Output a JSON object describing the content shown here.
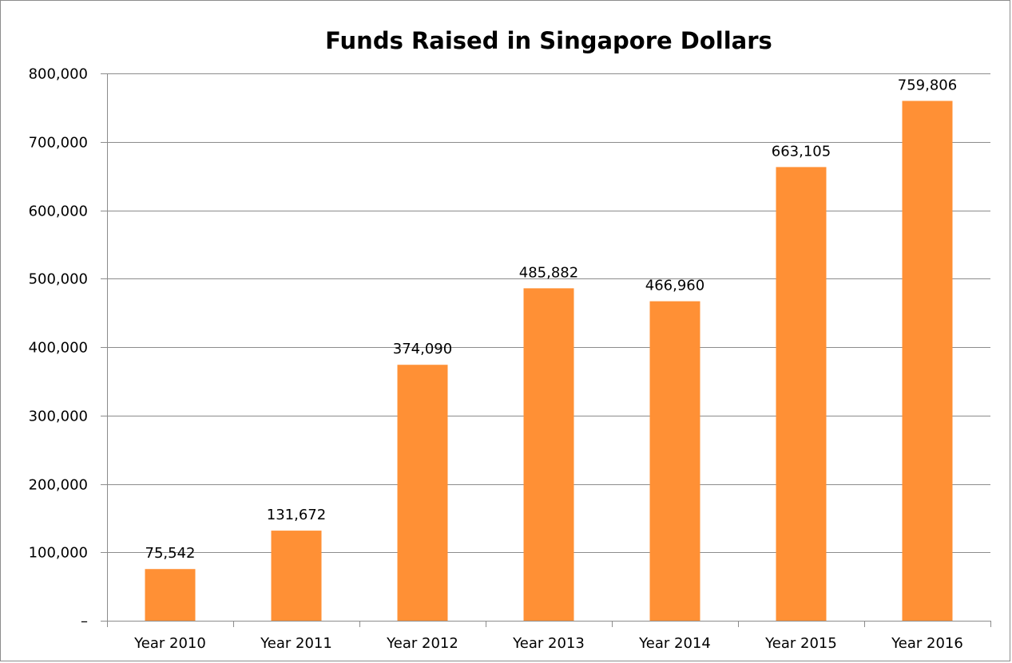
{
  "chart_data": {
    "type": "bar",
    "title": "Funds Raised in Singapore Dollars",
    "xlabel": "",
    "ylabel": "",
    "categories": [
      "Year 2010",
      "Year 2011",
      "Year 2012",
      "Year 2013",
      "Year 2014",
      "Year 2015",
      "Year 2016"
    ],
    "values": [
      75542,
      131672,
      374090,
      485882,
      466960,
      663105,
      759806
    ],
    "data_labels": [
      "75,542",
      "131,672",
      "374,090",
      "485,882",
      "466,960",
      "663,105",
      "759,806"
    ],
    "ylim": [
      0,
      800000
    ],
    "y_ticks": [
      0,
      100000,
      200000,
      300000,
      400000,
      500000,
      600000,
      700000,
      800000
    ],
    "y_tick_labels": [
      "–",
      "100,000",
      "200,000",
      "300,000",
      "400,000",
      "500,000",
      "600,000",
      "700,000",
      "800,000"
    ],
    "grid": true,
    "legend": "none",
    "bar_color": "#FF9035",
    "grid_color": "#8c8c8c"
  }
}
